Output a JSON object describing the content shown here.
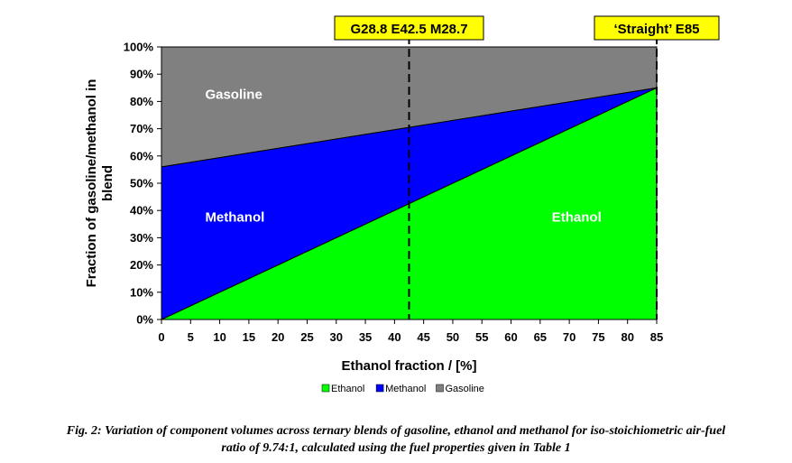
{
  "chart_data": {
    "type": "area",
    "stacked": true,
    "x": [
      0,
      85
    ],
    "series": [
      {
        "name": "Ethanol",
        "values": [
          0,
          85
        ],
        "color": "#00ff00"
      },
      {
        "name": "Methanol",
        "values": [
          56,
          0
        ],
        "color": "#0000ff"
      },
      {
        "name": "Gasoline",
        "values": [
          44,
          15
        ],
        "color": "#808080"
      }
    ],
    "xlim": [
      0,
      85
    ],
    "ylim": [
      0,
      100
    ],
    "xticks": [
      "0",
      "5",
      "10",
      "15",
      "20",
      "25",
      "30",
      "35",
      "40",
      "45",
      "50",
      "55",
      "60",
      "65",
      "70",
      "75",
      "80",
      "85"
    ],
    "yticks": [
      "0%",
      "10%",
      "20%",
      "30%",
      "40%",
      "50%",
      "60%",
      "70%",
      "80%",
      "90%",
      "100%"
    ],
    "xlabel": "Ethanol fraction / [%]",
    "ylabel_line1": "Fraction of gasoline/methanol in",
    "ylabel_line2": "blend",
    "region_labels": {
      "gasoline": "Gasoline",
      "methanol": "Methanol",
      "ethanol": "Ethanol"
    },
    "annotations": [
      {
        "x": 42.5,
        "label": "G28.8 E42.5 M28.7"
      },
      {
        "x": 85,
        "label": "‘Straight’ E85"
      }
    ],
    "legend": [
      "Ethanol",
      "Methanol",
      "Gasoline"
    ],
    "legend_position": "bottom",
    "grid": false
  },
  "caption_line1": "Fig. 2: Variation of component volumes across ternary blends of gasoline, ethanol and methanol for iso-stoichiometric air-fuel",
  "caption_line2": "ratio of 9.74:1, calculated using the fuel properties given in Table 1",
  "annotation_box_color": "#ffff00"
}
